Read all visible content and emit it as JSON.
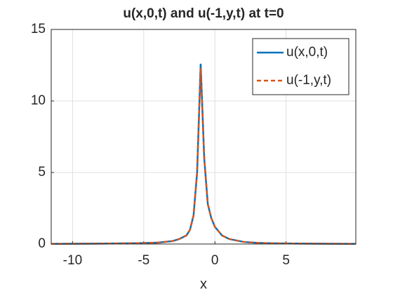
{
  "chart_data": {
    "type": "line",
    "title": "u(x,0,t) and u(-1,y,t) at t=0",
    "xlabel": "x",
    "x": [
      -11.5,
      -10,
      -8,
      -6,
      -5,
      -4,
      -3,
      -2.5,
      -2,
      -1.75,
      -1.5,
      -1.25,
      -1,
      -0.75,
      -0.5,
      -0.25,
      0,
      0.5,
      1,
      2,
      3,
      4,
      6,
      8,
      9.9
    ],
    "series": [
      {
        "name": "u(x,0,t)",
        "color": "#0072bd",
        "dash": false,
        "values": [
          0.01,
          0.02,
          0.03,
          0.05,
          0.07,
          0.1,
          0.2,
          0.35,
          0.6,
          1.0,
          2.0,
          5.0,
          12.6,
          6.0,
          2.8,
          1.8,
          1.2,
          0.6,
          0.35,
          0.15,
          0.08,
          0.05,
          0.03,
          0.02,
          0.01
        ]
      },
      {
        "name": "u(-1,y,t)",
        "color": "#d95319",
        "dash": true,
        "values": [
          0.01,
          0.02,
          0.03,
          0.05,
          0.07,
          0.1,
          0.2,
          0.35,
          0.6,
          1.0,
          2.0,
          5.0,
          12.3,
          6.0,
          2.8,
          1.8,
          1.2,
          0.6,
          0.35,
          0.15,
          0.08,
          0.05,
          0.03,
          0.02,
          0.01
        ]
      }
    ],
    "xlim": [
      -11.5,
      9.9
    ],
    "ylim": [
      0,
      15
    ],
    "xticks": [
      -10,
      -5,
      0,
      5
    ],
    "yticks": [
      0,
      5,
      10,
      15
    ],
    "grid": true,
    "legend": "top-right"
  }
}
